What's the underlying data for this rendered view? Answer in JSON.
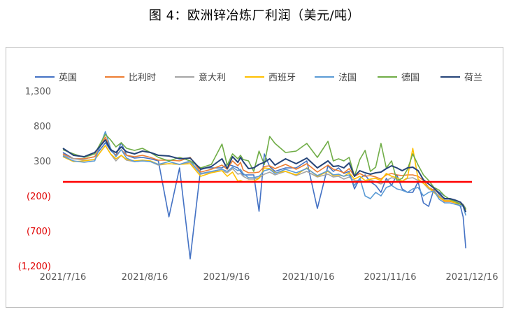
{
  "title": "图 4：欧洲锌冶炼厂利润（美元/吨）",
  "chart_data": {
    "type": "line",
    "title": "图 4：欧洲锌冶炼厂利润（美元/吨）",
    "unit": "美元/吨",
    "xlabel": "",
    "ylabel": "",
    "ylim": [
      -1200,
      1300
    ],
    "y_ticks": [
      {
        "value": 1300,
        "label": "1,300",
        "color": "#595959"
      },
      {
        "value": 800,
        "label": "800",
        "color": "#595959"
      },
      {
        "value": 300,
        "label": "300",
        "color": "#595959"
      },
      {
        "value": -200,
        "label": "(200)",
        "color": "#e00000"
      },
      {
        "value": -700,
        "label": "(700)",
        "color": "#e00000"
      },
      {
        "value": -1200,
        "label": "(1,200)",
        "color": "#e00000"
      }
    ],
    "x_ticks": [
      "2021/7/16",
      "2021/8/16",
      "2021/9/16",
      "2021/10/16",
      "2021/11/16",
      "2021/12/16"
    ],
    "x_days": 153,
    "grid": false,
    "legend_position": "top",
    "zero_line": {
      "value": 0,
      "color": "#ff0000"
    },
    "x": [
      0,
      4,
      8,
      12,
      16,
      18,
      20,
      22,
      24,
      27,
      30,
      33,
      36,
      40,
      44,
      48,
      52,
      56,
      60,
      62,
      64,
      66,
      67,
      68,
      70,
      72,
      74,
      76,
      78,
      80,
      84,
      88,
      92,
      96,
      100,
      102,
      104,
      106,
      108,
      110,
      112,
      114,
      116,
      118,
      120,
      122,
      124,
      126,
      128,
      130,
      132,
      134,
      136,
      138,
      140,
      142,
      144,
      146,
      148,
      150,
      151,
      152
    ],
    "series": [
      {
        "name": "英国",
        "color": "#4472c4",
        "values": [
          420,
          330,
          330,
          360,
          560,
          450,
          380,
          560,
          380,
          340,
          350,
          330,
          300,
          -500,
          200,
          -1100,
          200,
          200,
          200,
          250,
          230,
          200,
          150,
          100,
          100,
          100,
          -420,
          400,
          220,
          150,
          200,
          200,
          300,
          -380,
          230,
          150,
          200,
          120,
          150,
          -100,
          50,
          100,
          0,
          -50,
          -150,
          50,
          -50,
          100,
          -100,
          -150,
          -150,
          0,
          -300,
          -350,
          -100,
          -150,
          -200,
          -250,
          -300,
          -350,
          -500,
          -950
        ]
      },
      {
        "name": "比利时",
        "color": "#ed7d31",
        "values": [
          400,
          330,
          330,
          360,
          640,
          470,
          380,
          460,
          380,
          360,
          380,
          350,
          310,
          310,
          300,
          350,
          140,
          180,
          240,
          180,
          300,
          230,
          280,
          170,
          130,
          130,
          140,
          220,
          230,
          190,
          250,
          180,
          260,
          140,
          240,
          180,
          160,
          130,
          190,
          80,
          120,
          80,
          90,
          70,
          40,
          100,
          120,
          100,
          90,
          100,
          100,
          80,
          20,
          -80,
          -120,
          -220,
          -280,
          -280,
          -300,
          -320,
          -330,
          -390
        ]
      },
      {
        "name": "意大利",
        "color": "#a5a5a5",
        "values": [
          380,
          330,
          310,
          320,
          520,
          400,
          300,
          380,
          310,
          290,
          300,
          290,
          240,
          260,
          250,
          280,
          110,
          140,
          160,
          130,
          190,
          110,
          120,
          80,
          40,
          40,
          60,
          110,
          140,
          100,
          150,
          90,
          150,
          70,
          110,
          70,
          80,
          40,
          70,
          20,
          20,
          0,
          30,
          0,
          -30,
          20,
          60,
          40,
          10,
          50,
          60,
          20,
          -20,
          -100,
          -140,
          -200,
          -260,
          -260,
          -290,
          -300,
          -320,
          -380
        ]
      },
      {
        "name": "西班牙",
        "color": "#ffc000",
        "values": [
          360,
          290,
          300,
          320,
          520,
          400,
          330,
          380,
          320,
          300,
          310,
          300,
          250,
          260,
          250,
          260,
          80,
          130,
          160,
          80,
          140,
          10,
          20,
          0,
          10,
          10,
          50,
          200,
          190,
          130,
          150,
          100,
          200,
          80,
          150,
          90,
          100,
          80,
          130,
          40,
          80,
          20,
          40,
          50,
          20,
          120,
          80,
          60,
          10,
          60,
          480,
          40,
          -20,
          -80,
          -150,
          -220,
          -270,
          -270,
          -300,
          -320,
          -330,
          -400
        ]
      },
      {
        "name": "法国",
        "color": "#5b9bd5",
        "values": [
          370,
          300,
          280,
          300,
          720,
          480,
          360,
          460,
          340,
          290,
          300,
          290,
          250,
          290,
          250,
          300,
          120,
          150,
          180,
          150,
          210,
          160,
          180,
          120,
          60,
          60,
          80,
          160,
          180,
          120,
          180,
          130,
          190,
          90,
          160,
          100,
          110,
          80,
          100,
          -50,
          50,
          -200,
          -240,
          -150,
          -200,
          -80,
          -50,
          -100,
          -120,
          -150,
          -100,
          -80,
          -200,
          -150,
          -130,
          -250,
          -300,
          -300,
          -320,
          -340,
          -350,
          -480
        ]
      },
      {
        "name": "德国",
        "color": "#70ad47",
        "values": [
          460,
          400,
          350,
          400,
          680,
          600,
          500,
          560,
          480,
          450,
          480,
          420,
          350,
          300,
          350,
          300,
          200,
          250,
          540,
          240,
          400,
          330,
          380,
          320,
          300,
          150,
          440,
          250,
          650,
          550,
          420,
          440,
          550,
          350,
          580,
          300,
          330,
          300,
          350,
          80,
          320,
          450,
          150,
          210,
          550,
          200,
          300,
          20,
          50,
          180,
          400,
          240,
          100,
          20,
          -80,
          -120,
          -200,
          -250,
          -280,
          -320,
          -330,
          -390
        ]
      },
      {
        "name": "荷兰",
        "color": "#264478",
        "values": [
          480,
          380,
          360,
          420,
          600,
          460,
          420,
          500,
          430,
          400,
          440,
          420,
          380,
          370,
          330,
          340,
          180,
          220,
          330,
          190,
          360,
          280,
          350,
          290,
          190,
          200,
          250,
          280,
          330,
          240,
          330,
          260,
          340,
          200,
          300,
          220,
          230,
          200,
          270,
          80,
          160,
          130,
          110,
          130,
          140,
          190,
          230,
          200,
          160,
          200,
          210,
          160,
          30,
          -30,
          -90,
          -170,
          -240,
          -240,
          -260,
          -290,
          -340,
          -430
        ]
      }
    ]
  }
}
